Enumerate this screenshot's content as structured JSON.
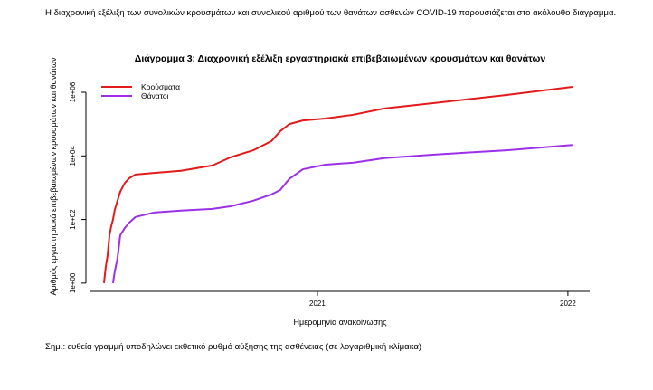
{
  "intro": "Η διαχρονική εξέλιξη των συνολικών κρουσμάτων και συνολικού αριθμού των θανάτων ασθενών COVID-19 παρουσιάζεται στο ακόλουθο διάγραμμα.",
  "note": "Σημ.: ευθεία γραμμή υποδηλώνει εκθετικό ρυθμό αύξησης της ασθένειας (σε λογαριθμική κλίμακα)",
  "chart_data": {
    "type": "line",
    "title": "Διάγραμμα 3: Διαχρονική εξέλιξη εργαστηριακά επιβεβαιωμένων κρουσμάτων και θανάτων",
    "x_label": "Ημερομηνία ανακοίνωσης",
    "y_label": "Αριθμός εργαστηριακά επιβεβαιωμένων κρουσμάτων και θανάτων",
    "x": [
      2020.148,
      2020.155,
      2020.162,
      2020.17,
      2020.177,
      2020.184,
      2020.191,
      2020.202,
      2020.213,
      2020.231,
      2020.249,
      2020.274,
      2020.347,
      2020.455,
      2020.581,
      2020.653,
      2020.744,
      2020.816,
      2020.852,
      2020.888,
      2020.942,
      2021.032,
      2021.141,
      2021.267,
      2021.466,
      2021.755,
      2022.018
    ],
    "series": [
      {
        "name": "Κρούσματα",
        "color": "#e31a1c",
        "values": [
          1,
          3.2,
          7,
          32,
          62,
          100,
          200,
          390,
          750,
          1400,
          2000,
          2600,
          2900,
          3400,
          5000,
          9000,
          15000,
          29000,
          60000,
          100000,
          130000,
          150000,
          195000,
          310000,
          460000,
          820000,
          1480000
        ]
      },
      {
        "name": "Θάνατοι",
        "color": "#9b30e8",
        "values": [
          null,
          null,
          null,
          null,
          null,
          1,
          2.3,
          6,
          32,
          54,
          80,
          120,
          165,
          190,
          215,
          260,
          390,
          610,
          850,
          1900,
          3800,
          5300,
          6100,
          8500,
          11000,
          15000,
          22000
        ]
      }
    ],
    "xlim": [
      2020.094,
      2022.087
    ],
    "xticks": [
      2021,
      2022
    ],
    "ylim": [
      0.55,
      2500000
    ],
    "yticks": [
      {
        "value": 1,
        "label": "1e+00"
      },
      {
        "value": 100,
        "label": "1e+02"
      },
      {
        "value": 10000,
        "label": "1e+04"
      },
      {
        "value": 1000000,
        "label": "1e+06"
      }
    ],
    "log_y": true,
    "legend": "top-left"
  }
}
